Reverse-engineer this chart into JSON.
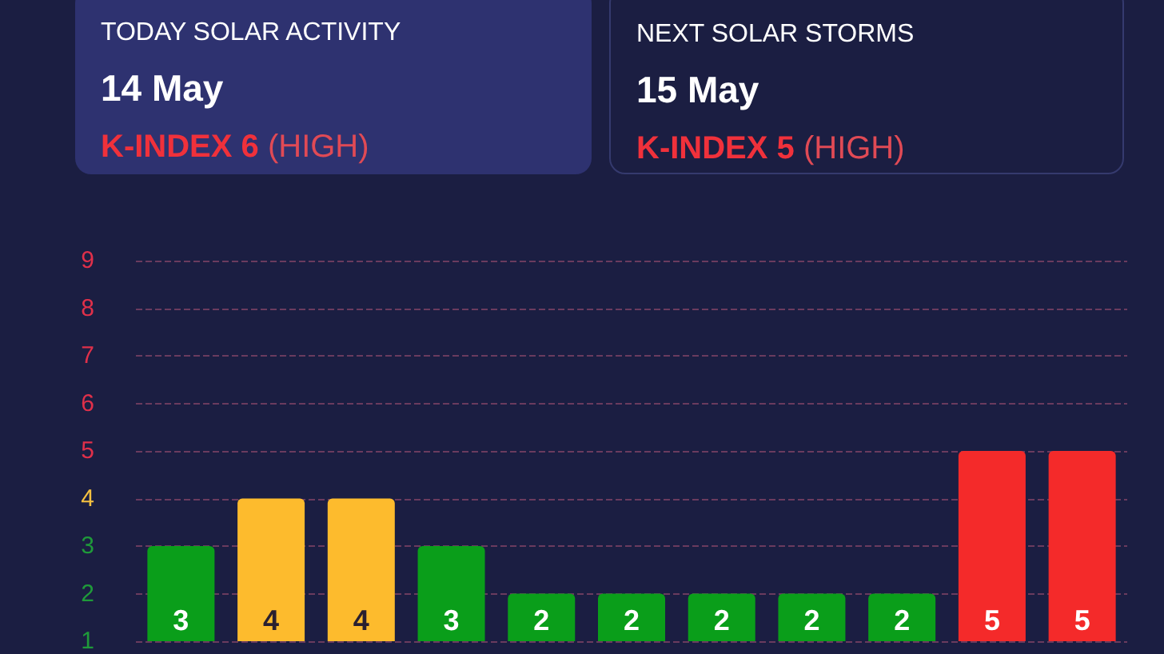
{
  "chart_data": {
    "type": "bar",
    "annotations": [
      "TODAY SOLAR ACTIVITY",
      "14 May",
      "K-INDEX 6",
      "(HIGH)",
      "NEXT SOLAR STORMS",
      "15 May",
      "K-INDEX 5",
      "(HIGH)"
    ],
    "categories": [
      null,
      null,
      null,
      null,
      null,
      null,
      null,
      null,
      null,
      null,
      null
    ],
    "values": [
      3,
      4,
      4,
      3,
      2,
      2,
      2,
      2,
      2,
      5,
      5
    ],
    "colors": [
      "#0a9e1a",
      "#fdbb2d",
      "#fdbb2d",
      "#0a9e1a",
      "#0a9e1a",
      "#0a9e1a",
      "#0a9e1a",
      "#0a9e1a",
      "#0a9e1a",
      "#f42a2a",
      "#f42a2a"
    ],
    "data_labels": true,
    "ylim": [
      1,
      9
    ],
    "yticks": [
      1,
      2,
      3,
      4,
      5,
      6,
      7,
      8,
      9
    ],
    "grid": "y"
  }
}
